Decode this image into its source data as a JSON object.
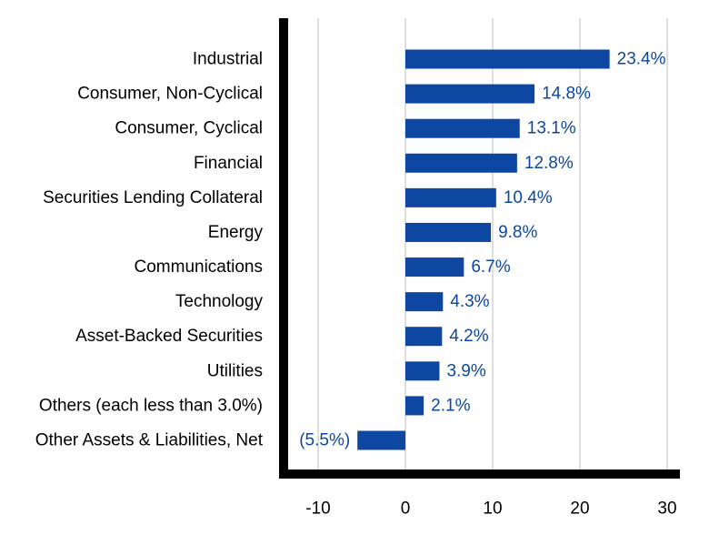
{
  "chart_data": {
    "type": "bar",
    "orientation": "horizontal",
    "categories": [
      "Industrial",
      "Consumer, Non-Cyclical",
      "Consumer, Cyclical",
      "Financial",
      "Securities Lending Collateral",
      "Energy",
      "Communications",
      "Technology",
      "Asset-Backed Securities",
      "Utilities",
      "Others (each less than 3.0%)",
      "Other Assets & Liabilities, Net"
    ],
    "values": [
      23.4,
      14.8,
      13.1,
      12.8,
      10.4,
      9.8,
      6.7,
      4.3,
      4.2,
      3.9,
      2.1,
      -5.5
    ],
    "value_labels": [
      "23.4%",
      "14.8%",
      "13.1%",
      "12.8%",
      "10.4%",
      "9.8%",
      "6.7%",
      "4.3%",
      "4.2%",
      "3.9%",
      "2.1%",
      "(5.5%)"
    ],
    "x_ticks": [
      -10,
      0,
      10,
      20,
      30
    ],
    "x_tick_labels": [
      "-10",
      "0",
      "10",
      "20",
      "30"
    ],
    "xlim": [
      -14,
      32
    ],
    "grid": "vertical",
    "legend": "none",
    "title": "",
    "xlabel": "",
    "ylabel": "",
    "colors": {
      "bar": "#0D47A1",
      "value_label": "#0D47A1",
      "grid": "#D3D3D3",
      "axis": "#000000"
    }
  }
}
